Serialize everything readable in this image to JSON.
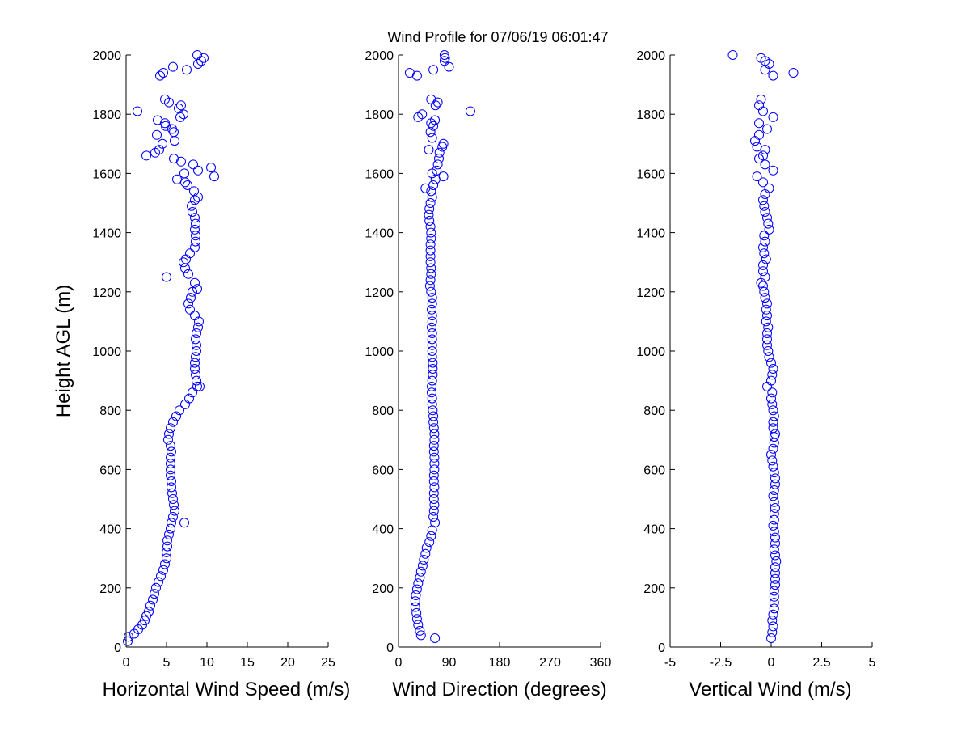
{
  "title": "Wind Profile for  07/06/19 06:01:47",
  "colors": {
    "marker": "#0000ff",
    "axis": "#000000",
    "background": "#ffffff"
  },
  "chart_data": [
    {
      "type": "scatter",
      "xlabel": "Horizontal Wind Speed (m/s)",
      "ylabel": "Height AGL (m)",
      "xlim": [
        0,
        25
      ],
      "ylim": [
        0,
        2000
      ],
      "xticks": [
        "0",
        "5",
        "10",
        "15",
        "20",
        "25"
      ],
      "yticks": [
        "0",
        "200",
        "400",
        "600",
        "800",
        "1000",
        "1200",
        "1400",
        "1600",
        "1800",
        "2000"
      ],
      "grid": false,
      "marker": "open-circle",
      "points": [
        [
          0.2,
          20
        ],
        [
          0.3,
          35
        ],
        [
          1.0,
          45
        ],
        [
          1.5,
          60
        ],
        [
          2.0,
          75
        ],
        [
          2.3,
          90
        ],
        [
          2.5,
          105
        ],
        [
          2.8,
          120
        ],
        [
          3.0,
          140
        ],
        [
          3.3,
          160
        ],
        [
          3.5,
          180
        ],
        [
          3.7,
          200
        ],
        [
          4.0,
          220
        ],
        [
          4.3,
          240
        ],
        [
          4.6,
          260
        ],
        [
          4.8,
          280
        ],
        [
          5.0,
          300
        ],
        [
          5.0,
          320
        ],
        [
          5.1,
          340
        ],
        [
          5.1,
          360
        ],
        [
          5.3,
          380
        ],
        [
          5.5,
          400
        ],
        [
          5.6,
          420
        ],
        [
          7.2,
          420
        ],
        [
          5.8,
          440
        ],
        [
          6.0,
          460
        ],
        [
          5.9,
          480
        ],
        [
          5.8,
          500
        ],
        [
          5.7,
          520
        ],
        [
          5.6,
          540
        ],
        [
          5.6,
          560
        ],
        [
          5.5,
          580
        ],
        [
          5.5,
          600
        ],
        [
          5.5,
          620
        ],
        [
          5.5,
          640
        ],
        [
          5.6,
          660
        ],
        [
          5.5,
          680
        ],
        [
          5.2,
          700
        ],
        [
          5.3,
          720
        ],
        [
          5.5,
          740
        ],
        [
          5.8,
          760
        ],
        [
          6.2,
          780
        ],
        [
          6.6,
          800
        ],
        [
          7.3,
          820
        ],
        [
          7.8,
          840
        ],
        [
          8.2,
          860
        ],
        [
          8.8,
          880
        ],
        [
          9.1,
          880
        ],
        [
          8.7,
          900
        ],
        [
          8.6,
          920
        ],
        [
          8.5,
          940
        ],
        [
          8.5,
          960
        ],
        [
          8.6,
          980
        ],
        [
          8.7,
          1000
        ],
        [
          8.7,
          1020
        ],
        [
          8.6,
          1040
        ],
        [
          8.7,
          1060
        ],
        [
          8.9,
          1080
        ],
        [
          9.0,
          1100
        ],
        [
          8.5,
          1120
        ],
        [
          7.9,
          1140
        ],
        [
          7.7,
          1160
        ],
        [
          8.0,
          1180
        ],
        [
          8.2,
          1200
        ],
        [
          8.8,
          1210
        ],
        [
          8.5,
          1230
        ],
        [
          5.0,
          1250
        ],
        [
          7.7,
          1260
        ],
        [
          7.3,
          1280
        ],
        [
          7.1,
          1300
        ],
        [
          7.4,
          1310
        ],
        [
          7.9,
          1330
        ],
        [
          8.5,
          1350
        ],
        [
          8.6,
          1370
        ],
        [
          8.6,
          1390
        ],
        [
          8.5,
          1410
        ],
        [
          8.6,
          1430
        ],
        [
          8.5,
          1450
        ],
        [
          8.2,
          1470
        ],
        [
          8.1,
          1490
        ],
        [
          8.5,
          1510
        ],
        [
          8.9,
          1520
        ],
        [
          8.4,
          1540
        ],
        [
          7.6,
          1560
        ],
        [
          7.3,
          1570
        ],
        [
          6.3,
          1580
        ],
        [
          10.9,
          1590
        ],
        [
          7.2,
          1600
        ],
        [
          8.9,
          1610
        ],
        [
          10.5,
          1620
        ],
        [
          8.3,
          1630
        ],
        [
          6.8,
          1640
        ],
        [
          5.9,
          1650
        ],
        [
          2.5,
          1660
        ],
        [
          3.6,
          1670
        ],
        [
          4.1,
          1680
        ],
        [
          4.5,
          1700
        ],
        [
          6.0,
          1710
        ],
        [
          3.8,
          1730
        ],
        [
          5.9,
          1740
        ],
        [
          5.7,
          1750
        ],
        [
          4.9,
          1760
        ],
        [
          4.8,
          1770
        ],
        [
          3.9,
          1780
        ],
        [
          6.7,
          1790
        ],
        [
          7.1,
          1800
        ],
        [
          1.4,
          1810
        ],
        [
          6.5,
          1820
        ],
        [
          6.8,
          1830
        ],
        [
          5.3,
          1840
        ],
        [
          4.8,
          1850
        ],
        [
          4.2,
          1930
        ],
        [
          4.6,
          1940
        ],
        [
          7.5,
          1950
        ],
        [
          5.8,
          1960
        ],
        [
          9.3,
          1980
        ],
        [
          9.6,
          1990
        ],
        [
          8.8,
          2000
        ],
        [
          8.9,
          1970
        ]
      ]
    },
    {
      "type": "scatter",
      "xlabel": "Wind Direction (degrees)",
      "ylabel": "",
      "xlim": [
        0,
        360
      ],
      "ylim": [
        0,
        2000
      ],
      "xticks": [
        "0",
        "90",
        "180",
        "270",
        "360"
      ],
      "yticks": [
        "0",
        "200",
        "400",
        "600",
        "800",
        "1000",
        "1200",
        "1400",
        "1600",
        "1800",
        "2000"
      ],
      "grid": false,
      "marker": "open-circle",
      "points": [
        [
          65,
          30
        ],
        [
          40,
          40
        ],
        [
          38,
          55
        ],
        [
          35,
          75
        ],
        [
          33,
          95
        ],
        [
          32,
          115
        ],
        [
          30,
          135
        ],
        [
          30,
          155
        ],
        [
          31,
          175
        ],
        [
          33,
          195
        ],
        [
          35,
          215
        ],
        [
          38,
          235
        ],
        [
          40,
          255
        ],
        [
          43,
          275
        ],
        [
          45,
          295
        ],
        [
          48,
          315
        ],
        [
          50,
          335
        ],
        [
          55,
          355
        ],
        [
          58,
          375
        ],
        [
          60,
          395
        ],
        [
          65,
          420
        ],
        [
          62,
          440
        ],
        [
          63,
          460
        ],
        [
          64,
          480
        ],
        [
          63,
          500
        ],
        [
          63,
          520
        ],
        [
          64,
          540
        ],
        [
          63,
          560
        ],
        [
          63,
          580
        ],
        [
          64,
          600
        ],
        [
          64,
          620
        ],
        [
          64,
          640
        ],
        [
          63,
          660
        ],
        [
          63,
          680
        ],
        [
          64,
          700
        ],
        [
          64,
          720
        ],
        [
          63,
          740
        ],
        [
          62,
          760
        ],
        [
          62,
          780
        ],
        [
          61,
          800
        ],
        [
          60,
          820
        ],
        [
          60,
          840
        ],
        [
          59,
          860
        ],
        [
          59,
          880
        ],
        [
          60,
          900
        ],
        [
          61,
          920
        ],
        [
          61,
          940
        ],
        [
          61,
          960
        ],
        [
          60,
          980
        ],
        [
          60,
          1000
        ],
        [
          60,
          1020
        ],
        [
          60,
          1040
        ],
        [
          60,
          1060
        ],
        [
          59,
          1080
        ],
        [
          60,
          1100
        ],
        [
          60,
          1120
        ],
        [
          59,
          1140
        ],
        [
          60,
          1160
        ],
        [
          60,
          1180
        ],
        [
          58,
          1200
        ],
        [
          56,
          1220
        ],
        [
          57,
          1240
        ],
        [
          58,
          1260
        ],
        [
          58,
          1280
        ],
        [
          57,
          1300
        ],
        [
          57,
          1320
        ],
        [
          57,
          1340
        ],
        [
          57,
          1360
        ],
        [
          58,
          1380
        ],
        [
          58,
          1400
        ],
        [
          57,
          1420
        ],
        [
          55,
          1440
        ],
        [
          54,
          1460
        ],
        [
          55,
          1480
        ],
        [
          57,
          1500
        ],
        [
          60,
          1520
        ],
        [
          58,
          1540
        ],
        [
          48,
          1550
        ],
        [
          62,
          1560
        ],
        [
          66,
          1580
        ],
        [
          80,
          1590
        ],
        [
          60,
          1600
        ],
        [
          68,
          1610
        ],
        [
          70,
          1630
        ],
        [
          72,
          1650
        ],
        [
          73,
          1670
        ],
        [
          78,
          1690
        ],
        [
          80,
          1700
        ],
        [
          54,
          1680
        ],
        [
          60,
          1720
        ],
        [
          57,
          1740
        ],
        [
          62,
          1760
        ],
        [
          58,
          1770
        ],
        [
          65,
          1780
        ],
        [
          35,
          1790
        ],
        [
          42,
          1800
        ],
        [
          128,
          1810
        ],
        [
          66,
          1830
        ],
        [
          70,
          1840
        ],
        [
          58,
          1850
        ],
        [
          20,
          1940
        ],
        [
          33,
          1930
        ],
        [
          62,
          1950
        ],
        [
          90,
          1960
        ],
        [
          82,
          1980
        ],
        [
          83,
          1990
        ],
        [
          82,
          2000
        ]
      ]
    },
    {
      "type": "scatter",
      "xlabel": "Vertical Wind (m/s)",
      "ylabel": "",
      "xlim": [
        -5,
        5
      ],
      "ylim": [
        0,
        2000
      ],
      "xticks": [
        "-5",
        "-2.5",
        "0",
        "2.5",
        "5"
      ],
      "yticks": [
        "0",
        "200",
        "400",
        "600",
        "800",
        "1000",
        "1200",
        "1400",
        "1600",
        "1800",
        "2000"
      ],
      "grid": false,
      "marker": "open-circle",
      "points": [
        [
          0.0,
          30
        ],
        [
          0.05,
          50
        ],
        [
          0.1,
          70
        ],
        [
          0.05,
          90
        ],
        [
          0.1,
          110
        ],
        [
          0.15,
          130
        ],
        [
          0.15,
          150
        ],
        [
          0.15,
          170
        ],
        [
          0.15,
          190
        ],
        [
          0.2,
          210
        ],
        [
          0.2,
          230
        ],
        [
          0.2,
          250
        ],
        [
          0.2,
          270
        ],
        [
          0.25,
          290
        ],
        [
          0.2,
          310
        ],
        [
          0.15,
          330
        ],
        [
          0.2,
          350
        ],
        [
          0.2,
          370
        ],
        [
          0.15,
          390
        ],
        [
          0.1,
          410
        ],
        [
          0.15,
          430
        ],
        [
          0.15,
          450
        ],
        [
          0.2,
          470
        ],
        [
          0.15,
          490
        ],
        [
          0.1,
          510
        ],
        [
          0.15,
          530
        ],
        [
          0.2,
          550
        ],
        [
          0.2,
          570
        ],
        [
          0.15,
          590
        ],
        [
          0.1,
          610
        ],
        [
          0.05,
          630
        ],
        [
          0.0,
          650
        ],
        [
          0.1,
          670
        ],
        [
          0.15,
          690
        ],
        [
          0.15,
          710
        ],
        [
          0.2,
          720
        ],
        [
          0.1,
          740
        ],
        [
          0.1,
          760
        ],
        [
          0.15,
          780
        ],
        [
          0.1,
          800
        ],
        [
          0.05,
          820
        ],
        [
          0.0,
          840
        ],
        [
          0.05,
          860
        ],
        [
          -0.2,
          880
        ],
        [
          0.0,
          900
        ],
        [
          0.05,
          920
        ],
        [
          0.1,
          940
        ],
        [
          0.0,
          960
        ],
        [
          -0.1,
          980
        ],
        [
          -0.15,
          1000
        ],
        [
          -0.2,
          1020
        ],
        [
          -0.2,
          1040
        ],
        [
          -0.2,
          1060
        ],
        [
          -0.15,
          1080
        ],
        [
          -0.25,
          1100
        ],
        [
          -0.2,
          1120
        ],
        [
          -0.25,
          1140
        ],
        [
          -0.2,
          1160
        ],
        [
          -0.3,
          1180
        ],
        [
          -0.35,
          1200
        ],
        [
          -0.4,
          1220
        ],
        [
          -0.5,
          1230
        ],
        [
          -0.3,
          1250
        ],
        [
          -0.4,
          1270
        ],
        [
          -0.4,
          1290
        ],
        [
          -0.25,
          1310
        ],
        [
          -0.35,
          1330
        ],
        [
          -0.4,
          1350
        ],
        [
          -0.3,
          1370
        ],
        [
          -0.35,
          1390
        ],
        [
          -0.1,
          1410
        ],
        [
          -0.15,
          1430
        ],
        [
          -0.2,
          1450
        ],
        [
          -0.3,
          1470
        ],
        [
          -0.35,
          1490
        ],
        [
          -0.4,
          1510
        ],
        [
          -0.3,
          1530
        ],
        [
          -0.1,
          1550
        ],
        [
          -0.4,
          1570
        ],
        [
          -0.7,
          1590
        ],
        [
          0.1,
          1610
        ],
        [
          -0.3,
          1630
        ],
        [
          -0.6,
          1650
        ],
        [
          -0.4,
          1660
        ],
        [
          -0.3,
          1680
        ],
        [
          -0.7,
          1690
        ],
        [
          -0.8,
          1710
        ],
        [
          -0.6,
          1730
        ],
        [
          -0.2,
          1750
        ],
        [
          -0.6,
          1770
        ],
        [
          0.1,
          1790
        ],
        [
          -0.4,
          1810
        ],
        [
          -0.6,
          1830
        ],
        [
          -0.5,
          1850
        ],
        [
          -1.9,
          2000
        ],
        [
          -0.5,
          1990
        ],
        [
          -0.3,
          1980
        ],
        [
          -0.1,
          1970
        ],
        [
          -0.3,
          1950
        ],
        [
          0.1,
          1930
        ],
        [
          1.1,
          1940
        ]
      ]
    }
  ]
}
